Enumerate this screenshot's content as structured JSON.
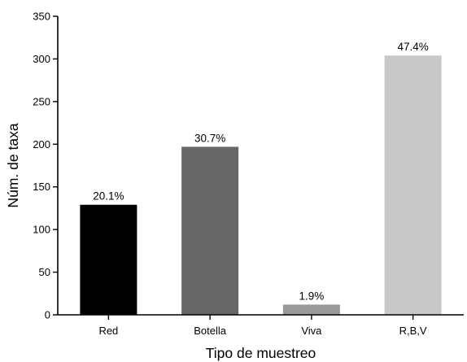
{
  "chart_data": {
    "type": "bar",
    "categories": [
      "Red",
      "Botella",
      "Viva",
      "R,B,V"
    ],
    "values": [
      129,
      197,
      12,
      304
    ],
    "data_labels": [
      "20.1%",
      "30.7%",
      "1.9%",
      "47.4%"
    ],
    "colors": [
      "#000000",
      "#666666",
      "#999999",
      "#c8c8c8"
    ],
    "xlabel": "Tipo de muestreo",
    "ylabel": "Núm. de taxa",
    "ylim": [
      0,
      350
    ],
    "yticks": [
      0,
      50,
      100,
      150,
      200,
      250,
      300,
      350
    ],
    "grid": false,
    "legend": "none"
  }
}
